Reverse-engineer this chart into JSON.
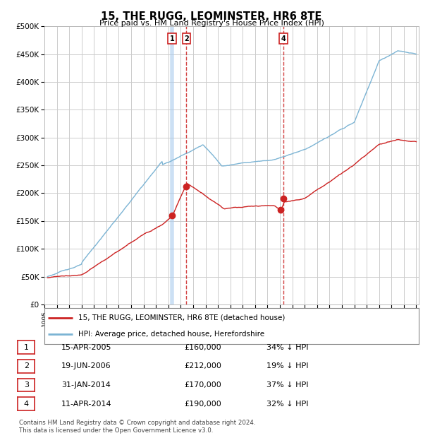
{
  "title": "15, THE RUGG, LEOMINSTER, HR6 8TE",
  "subtitle": "Price paid vs. HM Land Registry's House Price Index (HPI)",
  "ylabel_ticks": [
    "£0",
    "£50K",
    "£100K",
    "£150K",
    "£200K",
    "£250K",
    "£300K",
    "£350K",
    "£400K",
    "£450K",
    "£500K"
  ],
  "ytick_values": [
    0,
    50000,
    100000,
    150000,
    200000,
    250000,
    300000,
    350000,
    400000,
    450000,
    500000
  ],
  "xlim_start": 1995.3,
  "xlim_end": 2025.2,
  "ylim_min": 0,
  "ylim_max": 500000,
  "hpi_color": "#7cb4d4",
  "price_color": "#cc2222",
  "transaction_markers": [
    {
      "id": 1,
      "year": 2005.29,
      "price": 160000,
      "label": "1",
      "date": "15-APR-2005",
      "amount": "£160,000",
      "pct": "34% ↓ HPI",
      "vline_style": "blue_solid"
    },
    {
      "id": 2,
      "year": 2006.46,
      "price": 212000,
      "label": "2",
      "date": "19-JUN-2006",
      "amount": "£212,000",
      "pct": "19% ↓ HPI",
      "vline_style": "red_dashed"
    },
    {
      "id": 3,
      "year": 2014.08,
      "price": 170000,
      "label": "3",
      "date": "31-JAN-2014",
      "amount": "£170,000",
      "pct": "37% ↓ HPI",
      "vline_style": "none"
    },
    {
      "id": 4,
      "year": 2014.29,
      "price": 190000,
      "label": "4",
      "date": "11-APR-2014",
      "amount": "£190,000",
      "pct": "32% ↓ HPI",
      "vline_style": "red_dashed"
    }
  ],
  "legend_label_price": "15, THE RUGG, LEOMINSTER, HR6 8TE (detached house)",
  "legend_label_hpi": "HPI: Average price, detached house, Herefordshire",
  "footer": "Contains HM Land Registry data © Crown copyright and database right 2024.\nThis data is licensed under the Open Government Licence v3.0.",
  "background_color": "#ffffff",
  "grid_color": "#cccccc"
}
